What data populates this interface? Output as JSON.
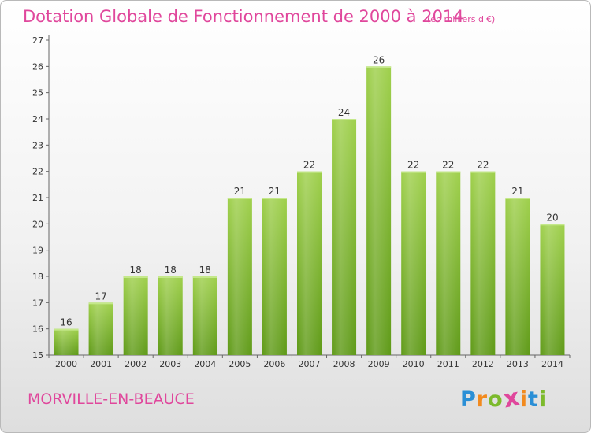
{
  "chart_data": {
    "type": "bar",
    "title": "Dotation Globale de Fonctionnement de 2000 à 2014",
    "subtitle": "(en milliers d'€)",
    "categories": [
      "2000",
      "2001",
      "2002",
      "2003",
      "2004",
      "2005",
      "2006",
      "2007",
      "2008",
      "2009",
      "2010",
      "2011",
      "2012",
      "2013",
      "2014"
    ],
    "values": [
      16,
      17,
      18,
      18,
      18,
      21,
      21,
      22,
      24,
      26,
      22,
      22,
      22,
      21,
      20
    ],
    "ylim": [
      15,
      27
    ],
    "yticks": [
      15,
      16,
      17,
      18,
      19,
      20,
      21,
      22,
      23,
      24,
      25,
      26,
      27
    ],
    "xlabel": "",
    "ylabel": "",
    "grid": false,
    "bar_color": "#7cba2c"
  },
  "footer": {
    "commune": "MORVILLE-EN-BEAUCE",
    "logo_letters": [
      "P",
      "r",
      "o",
      "x",
      "i",
      "t",
      "i"
    ],
    "logo_colors": [
      "#2a8fd6",
      "#f28a1e",
      "#7cba2c",
      "#e0479c",
      "#f28a1e",
      "#2a8fd6",
      "#7cba2c"
    ]
  }
}
